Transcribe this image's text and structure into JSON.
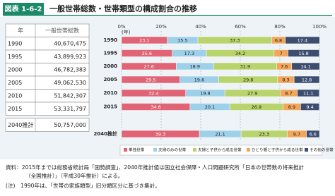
{
  "header": {
    "figure_no": "図表 1-6-2",
    "title": "一般世帯総数・世帯類型の構成割合の推移"
  },
  "table": {
    "columns": [
      "年",
      "一般世帯総数"
    ],
    "rows": [
      [
        "1990",
        "40,670,475"
      ],
      [
        "1995",
        "43,899,923"
      ],
      [
        "2000",
        "46,782,383"
      ],
      [
        "2005",
        "49,062,530"
      ],
      [
        "2010",
        "51,842,307"
      ],
      [
        "2015",
        "53,331,797"
      ],
      [
        "2040推計",
        "50,757,000"
      ]
    ]
  },
  "chart_data": {
    "type": "stacked-bar-horizontal",
    "x_axis_label": "(年)",
    "categories": [
      "1990",
      "1995",
      "2000",
      "2005",
      "2010",
      "2015",
      "2040推計"
    ],
    "series": [
      {
        "name": "単独世帯",
        "color": "#e06476",
        "values": [
          23.1,
          25.6,
          27.6,
          29.5,
          32.4,
          34.6,
          39.3
        ]
      },
      {
        "name": "夫婦のみの世帯",
        "color": "#9fd0ea",
        "values": [
          15.5,
          17.3,
          18.9,
          19.6,
          19.8,
          20.1,
          21.1
        ]
      },
      {
        "name": "夫婦と子供から成る世帯",
        "color": "#b9d46c",
        "values": [
          37.3,
          34.2,
          31.9,
          29.8,
          27.9,
          26.9,
          23.3
        ]
      },
      {
        "name": "ひとり親と子供から成る世帯",
        "color": "#f2a65a",
        "values": [
          6.8,
          7.0,
          7.6,
          8.3,
          8.7,
          8.9,
          9.7
        ]
      },
      {
        "name": "その他の世帯",
        "color": "#3d4d70",
        "values": [
          17.4,
          15.8,
          14.1,
          12.8,
          11.1,
          9.4,
          6.6
        ]
      }
    ],
    "xlim": [
      0,
      100
    ],
    "xticks": [
      {
        "value": 0,
        "label": "0%"
      },
      {
        "value": 20,
        "label": "20%"
      },
      {
        "value": 40,
        "label": "40%"
      },
      {
        "value": 60,
        "label": "60%"
      },
      {
        "value": 80,
        "label": "80%"
      },
      {
        "value": 100,
        "label": "100%"
      }
    ],
    "grid": true
  },
  "notes": [
    "資料：2015年までは総務省統計局「国勢調査」、2040年推計値は国立社会保障・人口問題研究所「日本の世帯数の将来推計",
    "（全国推計）」（平成30年推計）による。",
    "(注)　1990年は、「世帯の家族類型」旧分類区分に基づき集計。"
  ]
}
